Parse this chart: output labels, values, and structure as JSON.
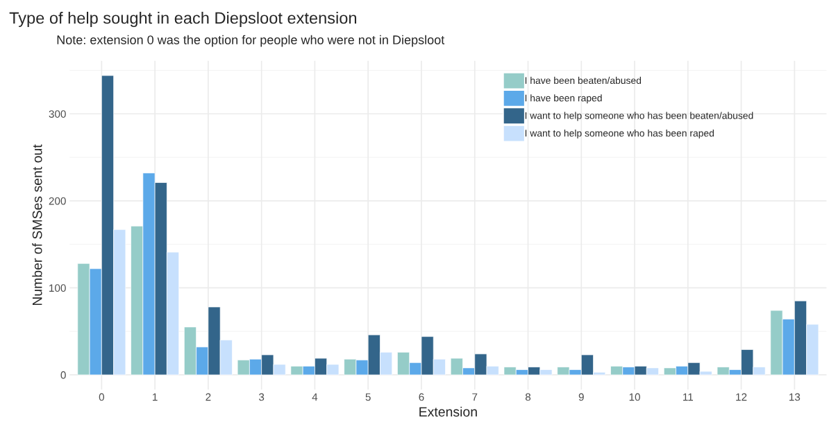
{
  "chart_data": {
    "type": "bar",
    "title": "Type of help sought in each Diepsloot extension",
    "subtitle": "Note: extension 0 was the option for people who were not in Diepsloot",
    "xlabel": "Extension",
    "ylabel": "Number of SMSes sent out",
    "categories": [
      "0",
      "1",
      "2",
      "3",
      "4",
      "5",
      "6",
      "7",
      "8",
      "9",
      "10",
      "11",
      "12",
      "13"
    ],
    "series": [
      {
        "name": "I have been beaten/abused",
        "color": "#95ccc8",
        "values": [
          128,
          171,
          55,
          17,
          10,
          18,
          26,
          19,
          9,
          9,
          10,
          8,
          9,
          74
        ]
      },
      {
        "name": "I have been raped",
        "color": "#5ca9e9",
        "values": [
          122,
          232,
          32,
          18,
          10,
          17,
          14,
          8,
          6,
          6,
          9,
          10,
          6,
          64
        ]
      },
      {
        "name": "I want to help someone who has been beaten/abused",
        "color": "#33658a",
        "values": [
          344,
          221,
          78,
          23,
          19,
          46,
          44,
          24,
          9,
          23,
          10,
          14,
          29,
          85
        ]
      },
      {
        "name": "I want to help someone who has been raped",
        "color": "#c7e0fd",
        "values": [
          167,
          141,
          40,
          12,
          12,
          26,
          18,
          10,
          6,
          3,
          8,
          4,
          9,
          58
        ]
      }
    ],
    "ylim": [
      -17,
      361
    ],
    "yticks": [
      0,
      100,
      200,
      300
    ],
    "grid": true,
    "legend": "top right"
  }
}
